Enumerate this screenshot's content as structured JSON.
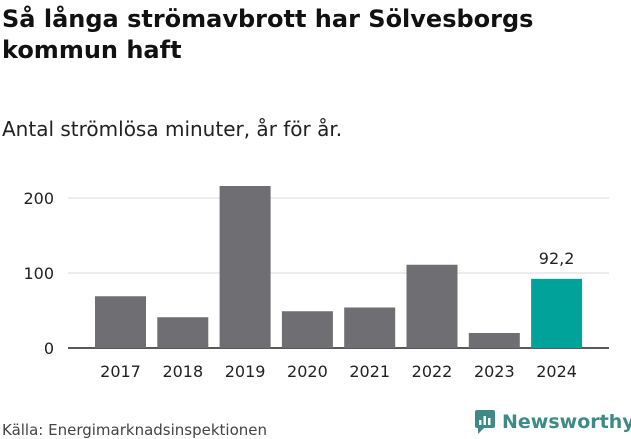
{
  "title": "Så långa strömavbrott har Sölvesborgs kommun haft",
  "subtitle": "Antal strömlösa minuter, år för år.",
  "source": "Källa: Energimarknadsinspektionen",
  "brand": "Newsworthy",
  "colors": {
    "bar": "#6e6e73",
    "highlight": "#00a39a",
    "grid": "#d9d9d9",
    "axis": "#222222",
    "brand": "#3d8a86"
  },
  "chart_data": {
    "type": "bar",
    "categories": [
      "2017",
      "2018",
      "2019",
      "2020",
      "2021",
      "2022",
      "2023",
      "2024"
    ],
    "values": [
      69,
      41,
      216,
      49,
      54,
      111,
      20,
      92.2
    ],
    "highlight_index": 7,
    "highlight_label": "92,2",
    "yticks": [
      0,
      100,
      200
    ],
    "ylim": [
      0,
      220
    ],
    "grid": true
  }
}
